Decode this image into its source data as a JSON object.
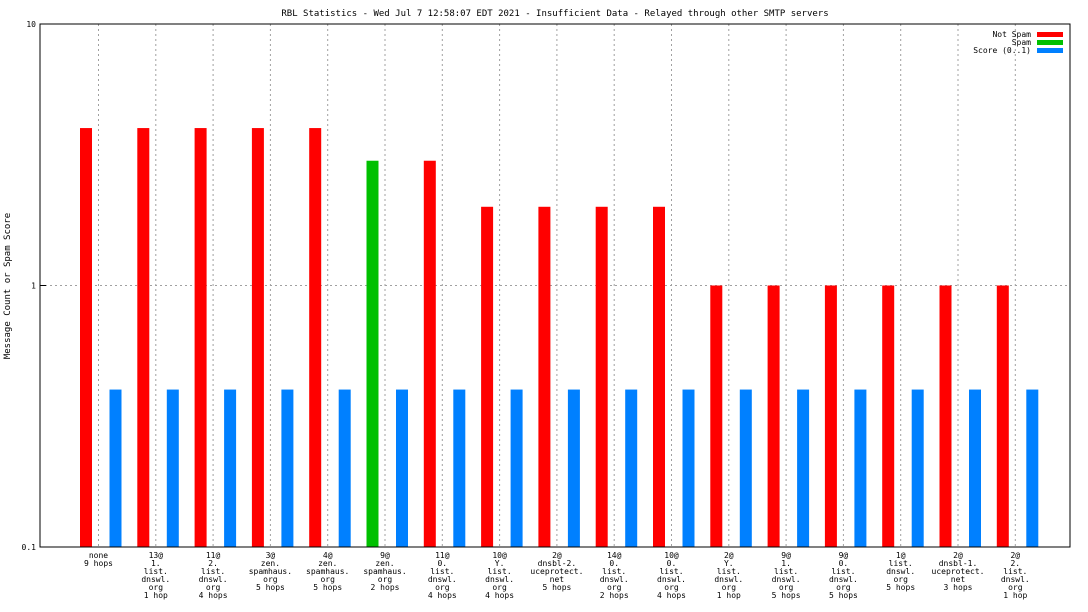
{
  "chart_data": {
    "type": "bar",
    "title": "RBL Statistics - Wed Jul  7 12:58:07 EDT 2021 - Insufficient Data - Relayed through other SMTP servers",
    "xlabel": "",
    "ylabel": "Message Count or Spam Score",
    "yscale": "log",
    "ylim": [
      0.1,
      10
    ],
    "yticks": [
      0.1,
      1,
      10
    ],
    "ytick_labels": [
      "0.1",
      "1",
      "10"
    ],
    "grid": true,
    "legend_position": "top-right",
    "categories": [
      [
        "none",
        "9 hops"
      ],
      [
        "13@",
        "1.",
        "list.",
        "dnswl.",
        "org",
        "1 hop"
      ],
      [
        "11@",
        "2.",
        "list.",
        "dnswl.",
        "org",
        "4 hops"
      ],
      [
        "3@",
        "zen.",
        "spamhaus.",
        "org",
        "5 hops"
      ],
      [
        "4@",
        "zen.",
        "spamhaus.",
        "org",
        "5 hops"
      ],
      [
        "9@",
        "zen.",
        "spamhaus.",
        "org",
        "2 hops"
      ],
      [
        "11@",
        "0.",
        "list.",
        "dnswl.",
        "org",
        "4 hops"
      ],
      [
        "10@",
        "Y.",
        "list.",
        "dnswl.",
        "org",
        "4 hops"
      ],
      [
        "2@",
        "dnsbl-2.",
        "uceprotect.",
        "net",
        "5 hops"
      ],
      [
        "14@",
        "0.",
        "list.",
        "dnswl.",
        "org",
        "2 hops"
      ],
      [
        "10@",
        "0.",
        "list.",
        "dnswl.",
        "org",
        "4 hops"
      ],
      [
        "2@",
        "Y.",
        "list.",
        "dnswl.",
        "org",
        "1 hop"
      ],
      [
        "9@",
        "1.",
        "list.",
        "dnswl.",
        "org",
        "5 hops"
      ],
      [
        "9@",
        "0.",
        "list.",
        "dnswl.",
        "org",
        "5 hops"
      ],
      [
        "1@",
        "list.",
        "dnswl.",
        "org",
        "5 hops"
      ],
      [
        "2@",
        "dnsbl-1.",
        "uceprotect.",
        "net",
        "3 hops"
      ],
      [
        "2@",
        "2.",
        "list.",
        "dnswl.",
        "org",
        "1 hop"
      ]
    ],
    "series": [
      {
        "name": "Not Spam",
        "color": "#ff0000",
        "values": [
          4,
          4,
          4,
          4,
          4,
          0,
          3,
          2,
          2,
          2,
          2,
          1,
          1,
          1,
          1,
          1,
          1
        ]
      },
      {
        "name": "Spam",
        "color": "#00c000",
        "values": [
          0,
          0,
          0,
          0,
          0,
          3,
          0,
          0,
          0,
          0,
          0,
          0,
          0,
          0,
          0,
          0,
          0
        ]
      },
      {
        "name": "Score (0..1)",
        "color": "#0080ff",
        "values": [
          0.4,
          0.4,
          0.4,
          0.4,
          0.4,
          0.4,
          0.4,
          0.4,
          0.4,
          0.4,
          0.4,
          0.4,
          0.4,
          0.4,
          0.4,
          0.4,
          0.4
        ]
      }
    ]
  }
}
